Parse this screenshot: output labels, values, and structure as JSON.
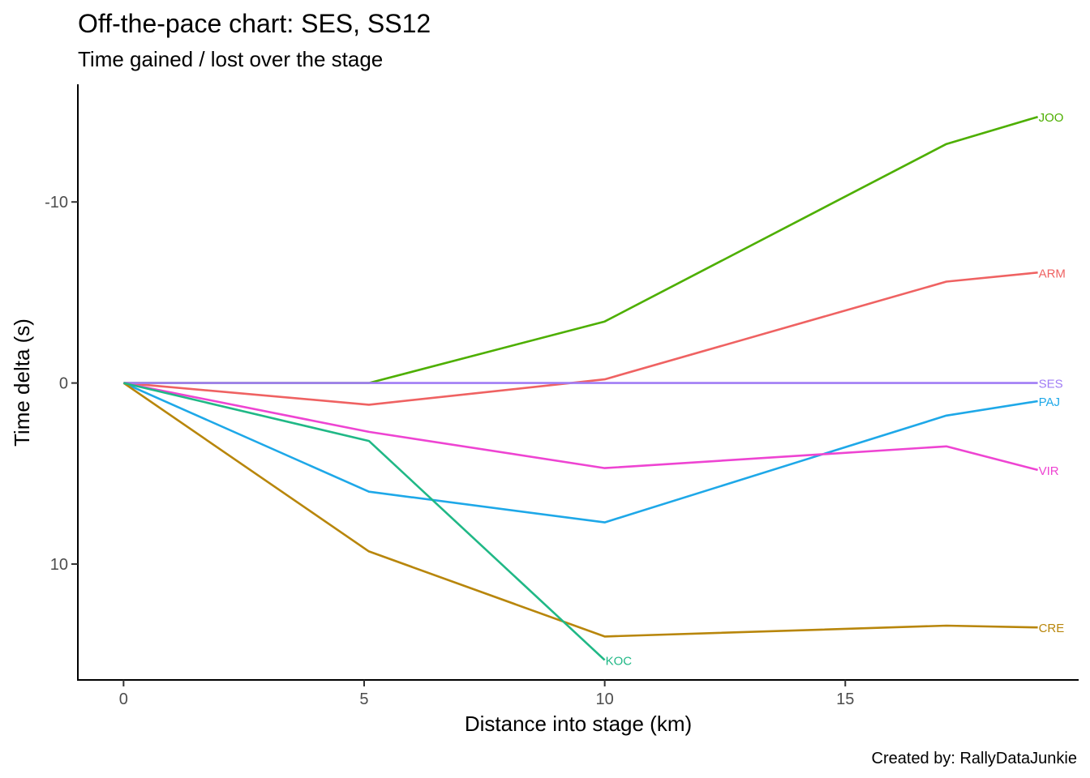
{
  "chart_data": {
    "type": "line",
    "title": "Off-the-pace chart: SES, SS12",
    "subtitle": "Time gained / lost over the stage",
    "xlabel": "Distance into stage (km)",
    "ylabel": "Time delta (s)",
    "caption": "Created by: RallyDataJunkie",
    "xlim": [
      -0.95,
      19.85
    ],
    "ylim": [
      16.4,
      -16.5
    ],
    "y_reversed": true,
    "x_ticks": [
      0,
      5,
      10,
      15
    ],
    "x_tick_labels": [
      "0",
      "5",
      "10",
      "15"
    ],
    "y_ticks": [
      -10,
      0,
      10
    ],
    "y_tick_labels": [
      "-10",
      "0",
      "10"
    ],
    "grid": false,
    "legend": "none (labels at line ends)",
    "series": [
      {
        "name": "JOO",
        "color": "#4daf00",
        "x": [
          0,
          5.1,
          10,
          17.1,
          19.0
        ],
        "y": [
          0,
          0,
          -3.4,
          -13.2,
          -14.7
        ]
      },
      {
        "name": "ARM",
        "color": "#ef6262",
        "x": [
          0,
          5.1,
          10,
          17.1,
          19.0
        ],
        "y": [
          0,
          1.2,
          -0.2,
          -5.6,
          -6.1
        ]
      },
      {
        "name": "SES",
        "color": "#a07cf5",
        "x": [
          0,
          5.1,
          10,
          17.1,
          19.0
        ],
        "y": [
          0,
          0,
          0,
          0,
          0
        ]
      },
      {
        "name": "PAJ",
        "color": "#1ea8e8",
        "x": [
          0,
          5.1,
          10,
          17.1,
          19.0
        ],
        "y": [
          0,
          6.0,
          7.7,
          1.8,
          1.0
        ]
      },
      {
        "name": "VIR",
        "color": "#ee44d2",
        "x": [
          0,
          5.1,
          10,
          17.1,
          19.0
        ],
        "y": [
          0,
          2.7,
          4.7,
          3.5,
          4.8
        ]
      },
      {
        "name": "CRE",
        "color": "#b8860b",
        "x": [
          0,
          5.1,
          10,
          17.1,
          19.0
        ],
        "y": [
          0,
          9.3,
          14.0,
          13.4,
          13.5
        ]
      },
      {
        "name": "KOC",
        "color": "#20b886",
        "x": [
          0,
          5.1,
          10
        ],
        "y": [
          0,
          3.2,
          15.3
        ]
      }
    ]
  }
}
